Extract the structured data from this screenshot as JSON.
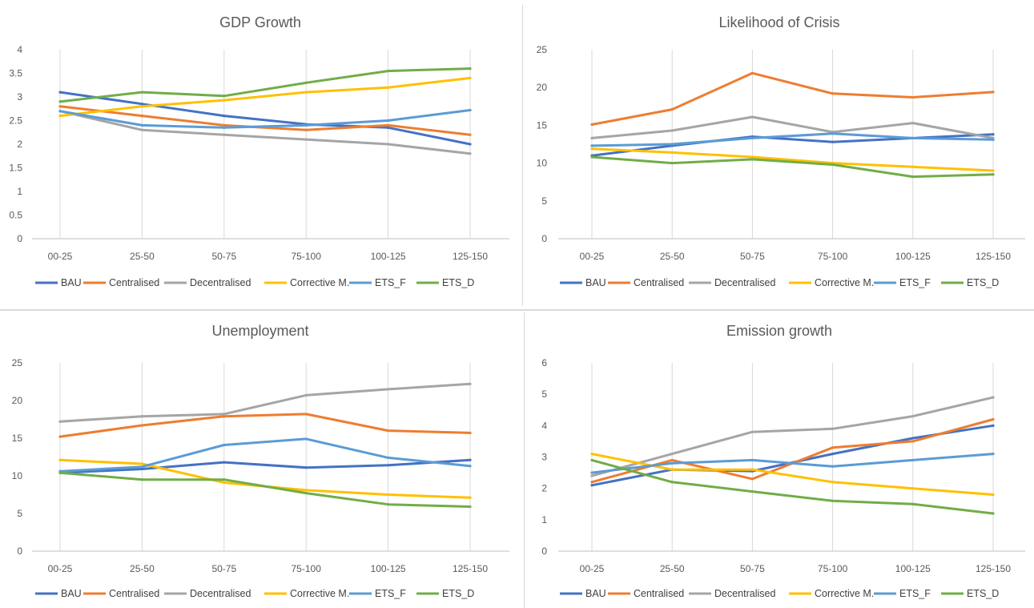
{
  "chart_data": [
    {
      "type": "line",
      "title": "GDP Growth",
      "categories": [
        "00-25",
        "25-50",
        "50-75",
        "75-100",
        "100-125",
        "125-150"
      ],
      "yticks": [
        "0",
        "0.5",
        "1",
        "1.5",
        "2",
        "2.5",
        "3",
        "3.5",
        "4"
      ],
      "ylim": [
        0,
        4
      ],
      "grid": "vertical",
      "legend_position": "bottom",
      "series": [
        {
          "name": "BAU",
          "color": "#4472C4",
          "values": [
            3.1,
            2.85,
            2.6,
            2.42,
            2.35,
            2.0
          ]
        },
        {
          "name": "Centralised",
          "color": "#ED7D31",
          "values": [
            2.8,
            2.6,
            2.4,
            2.3,
            2.4,
            2.2
          ]
        },
        {
          "name": "Decentralised",
          "color": "#A5A5A5",
          "values": [
            2.7,
            2.3,
            2.2,
            2.1,
            2.0,
            1.8
          ]
        },
        {
          "name": "Corrective M.",
          "color": "#FFC000",
          "values": [
            2.6,
            2.8,
            2.93,
            3.1,
            3.2,
            3.4
          ]
        },
        {
          "name": "ETS_F",
          "color": "#5B9BD5",
          "values": [
            2.7,
            2.4,
            2.35,
            2.4,
            2.5,
            2.72
          ]
        },
        {
          "name": "ETS_D",
          "color": "#70AD47",
          "values": [
            2.9,
            3.1,
            3.02,
            3.3,
            3.55,
            3.6
          ]
        }
      ]
    },
    {
      "type": "line",
      "title": "Likelihood of Crisis",
      "categories": [
        "00-25",
        "25-50",
        "50-75",
        "75-100",
        "100-125",
        "125-150"
      ],
      "yticks": [
        "0",
        "5",
        "10",
        "15",
        "20",
        "25"
      ],
      "ylim": [
        0,
        25
      ],
      "grid": "vertical",
      "legend_position": "bottom",
      "series": [
        {
          "name": "BAU",
          "color": "#4472C4",
          "values": [
            11.0,
            12.3,
            13.5,
            12.8,
            13.3,
            13.8
          ]
        },
        {
          "name": "Centralised",
          "color": "#ED7D31",
          "values": [
            15.1,
            17.1,
            21.9,
            19.2,
            18.7,
            19.4
          ]
        },
        {
          "name": "Decentralised",
          "color": "#A5A5A5",
          "values": [
            13.3,
            14.3,
            16.1,
            14.1,
            15.3,
            13.3
          ]
        },
        {
          "name": "Corrective M.",
          "color": "#FFC000",
          "values": [
            11.9,
            11.4,
            10.8,
            10.0,
            9.5,
            9.0
          ]
        },
        {
          "name": "ETS_F",
          "color": "#5B9BD5",
          "values": [
            12.3,
            12.5,
            13.3,
            13.9,
            13.3,
            13.1
          ]
        },
        {
          "name": "ETS_D",
          "color": "#70AD47",
          "values": [
            10.8,
            10.0,
            10.5,
            9.8,
            8.2,
            8.5
          ]
        }
      ]
    },
    {
      "type": "line",
      "title": "Unemployment",
      "categories": [
        "00-25",
        "25-50",
        "50-75",
        "75-100",
        "100-125",
        "125-150"
      ],
      "yticks": [
        "0",
        "5",
        "10",
        "15",
        "20",
        "25"
      ],
      "ylim": [
        0,
        25
      ],
      "grid": "vertical",
      "legend_position": "bottom",
      "series": [
        {
          "name": "BAU",
          "color": "#4472C4",
          "values": [
            10.4,
            10.9,
            11.8,
            11.1,
            11.4,
            12.1
          ]
        },
        {
          "name": "Centralised",
          "color": "#ED7D31",
          "values": [
            15.2,
            16.7,
            17.9,
            18.2,
            16.0,
            15.7
          ]
        },
        {
          "name": "Decentralised",
          "color": "#A5A5A5",
          "values": [
            17.2,
            17.9,
            18.2,
            20.7,
            21.5,
            22.2
          ]
        },
        {
          "name": "Corrective M.",
          "color": "#FFC000",
          "values": [
            12.1,
            11.6,
            9.1,
            8.1,
            7.5,
            7.1
          ]
        },
        {
          "name": "ETS_F",
          "color": "#5B9BD5",
          "values": [
            10.6,
            11.2,
            14.1,
            14.9,
            12.4,
            11.3
          ]
        },
        {
          "name": "ETS_D",
          "color": "#70AD47",
          "values": [
            10.4,
            9.5,
            9.5,
            7.7,
            6.2,
            5.9
          ]
        }
      ]
    },
    {
      "type": "line",
      "title": "Emission growth",
      "categories": [
        "00-25",
        "25-50",
        "50-75",
        "75-100",
        "100-125",
        "125-150"
      ],
      "yticks": [
        "0",
        "1",
        "2",
        "3",
        "4",
        "5",
        "6"
      ],
      "ylim": [
        0,
        6
      ],
      "grid": "vertical",
      "legend_position": "bottom",
      "series": [
        {
          "name": "BAU",
          "color": "#4472C4",
          "values": [
            2.1,
            2.6,
            2.55,
            3.1,
            3.6,
            4.0
          ]
        },
        {
          "name": "Centralised",
          "color": "#ED7D31",
          "values": [
            2.2,
            2.9,
            2.3,
            3.3,
            3.5,
            4.2
          ]
        },
        {
          "name": "Decentralised",
          "color": "#A5A5A5",
          "values": [
            2.4,
            3.1,
            3.8,
            3.9,
            4.3,
            4.9
          ]
        },
        {
          "name": "Corrective M.",
          "color": "#FFC000",
          "values": [
            3.1,
            2.6,
            2.6,
            2.2,
            2.0,
            1.8
          ]
        },
        {
          "name": "ETS_F",
          "color": "#5B9BD5",
          "values": [
            2.5,
            2.8,
            2.9,
            2.7,
            2.9,
            3.1
          ]
        },
        {
          "name": "ETS_D",
          "color": "#70AD47",
          "values": [
            2.9,
            2.2,
            1.9,
            1.6,
            1.5,
            1.2
          ]
        }
      ]
    }
  ]
}
